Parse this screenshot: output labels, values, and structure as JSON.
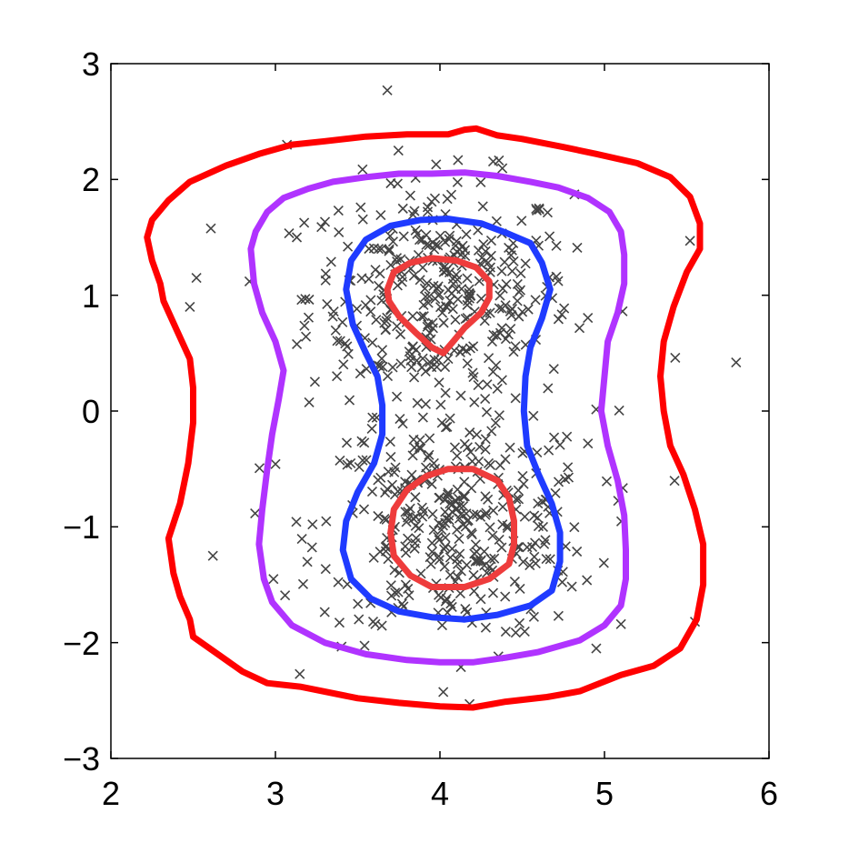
{
  "chart_data": {
    "type": "scatter",
    "title": "",
    "xlabel": "",
    "ylabel": "",
    "xlim": [
      2,
      6
    ],
    "ylim": [
      -3,
      3
    ],
    "x_ticks": [
      2,
      3,
      4,
      5,
      6
    ],
    "y_ticks": [
      -3,
      -2,
      -1,
      0,
      1,
      2,
      3
    ],
    "x_tick_labels": [
      "2",
      "3",
      "4",
      "5",
      "6"
    ],
    "y_tick_labels": [
      "−3",
      "−2",
      "−1",
      "0",
      "1",
      "2",
      "3"
    ],
    "grid": false,
    "marker": "x",
    "marker_color": "#444444",
    "scatter_clusters": [
      {
        "center": [
          4.0,
          1.0
        ],
        "std": [
          0.4,
          0.5
        ],
        "count": 360
      },
      {
        "center": [
          4.1,
          -1.0
        ],
        "std": [
          0.42,
          0.5
        ],
        "count": 360
      }
    ],
    "scatter_outliers": [
      [
        3.68,
        2.77
      ],
      [
        4.18,
        -2.53
      ],
      [
        5.8,
        0.42
      ],
      [
        5.52,
        1.47
      ],
      [
        2.48,
        0.9
      ],
      [
        2.52,
        1.15
      ],
      [
        2.62,
        -1.25
      ],
      [
        5.55,
        -1.82
      ],
      [
        5.43,
        0.46
      ],
      [
        4.95,
        -2.05
      ],
      [
        3.07,
        2.3
      ],
      [
        3.13,
        1.5
      ]
    ],
    "contours": [
      {
        "level": "outer",
        "color": "#ff0000",
        "points": [
          [
            2.22,
            1.5
          ],
          [
            2.25,
            1.65
          ],
          [
            2.35,
            1.82
          ],
          [
            2.48,
            1.98
          ],
          [
            2.7,
            2.12
          ],
          [
            2.9,
            2.22
          ],
          [
            3.1,
            2.3
          ],
          [
            3.3,
            2.33
          ],
          [
            3.55,
            2.37
          ],
          [
            3.8,
            2.39
          ],
          [
            4.05,
            2.39
          ],
          [
            4.15,
            2.43
          ],
          [
            4.22,
            2.44
          ],
          [
            4.35,
            2.38
          ],
          [
            4.5,
            2.35
          ],
          [
            4.75,
            2.28
          ],
          [
            4.95,
            2.22
          ],
          [
            5.2,
            2.14
          ],
          [
            5.4,
            2.02
          ],
          [
            5.52,
            1.85
          ],
          [
            5.58,
            1.62
          ],
          [
            5.58,
            1.4
          ],
          [
            5.5,
            1.2
          ],
          [
            5.42,
            0.9
          ],
          [
            5.36,
            0.6
          ],
          [
            5.34,
            0.3
          ],
          [
            5.36,
            0.0
          ],
          [
            5.4,
            -0.3
          ],
          [
            5.48,
            -0.55
          ],
          [
            5.55,
            -0.85
          ],
          [
            5.6,
            -1.15
          ],
          [
            5.6,
            -1.5
          ],
          [
            5.56,
            -1.8
          ],
          [
            5.46,
            -2.05
          ],
          [
            5.3,
            -2.2
          ],
          [
            5.1,
            -2.28
          ],
          [
            4.85,
            -2.42
          ],
          [
            4.65,
            -2.47
          ],
          [
            4.4,
            -2.51
          ],
          [
            4.2,
            -2.56
          ],
          [
            4.0,
            -2.55
          ],
          [
            3.75,
            -2.52
          ],
          [
            3.5,
            -2.48
          ],
          [
            3.15,
            -2.38
          ],
          [
            2.95,
            -2.35
          ],
          [
            2.8,
            -2.25
          ],
          [
            2.6,
            -2.05
          ],
          [
            2.5,
            -1.95
          ],
          [
            2.48,
            -1.8
          ],
          [
            2.42,
            -1.6
          ],
          [
            2.38,
            -1.4
          ],
          [
            2.35,
            -1.1
          ],
          [
            2.42,
            -0.8
          ],
          [
            2.47,
            -0.45
          ],
          [
            2.5,
            -0.1
          ],
          [
            2.5,
            0.2
          ],
          [
            2.48,
            0.45
          ],
          [
            2.4,
            0.7
          ],
          [
            2.32,
            0.95
          ],
          [
            2.3,
            1.1
          ],
          [
            2.25,
            1.3
          ],
          [
            2.22,
            1.5
          ]
        ]
      },
      {
        "level": "second",
        "color": "#b033ff",
        "points": [
          [
            2.85,
            1.4
          ],
          [
            2.88,
            1.55
          ],
          [
            2.95,
            1.72
          ],
          [
            3.05,
            1.84
          ],
          [
            3.2,
            1.92
          ],
          [
            3.35,
            1.98
          ],
          [
            3.55,
            2.02
          ],
          [
            3.75,
            2.05
          ],
          [
            3.95,
            2.05
          ],
          [
            4.15,
            2.06
          ],
          [
            4.35,
            2.03
          ],
          [
            4.55,
            1.98
          ],
          [
            4.72,
            1.93
          ],
          [
            4.9,
            1.84
          ],
          [
            5.03,
            1.72
          ],
          [
            5.1,
            1.55
          ],
          [
            5.12,
            1.35
          ],
          [
            5.12,
            1.1
          ],
          [
            5.08,
            0.85
          ],
          [
            5.02,
            0.6
          ],
          [
            5.0,
            0.3
          ],
          [
            4.98,
            0.0
          ],
          [
            5.02,
            -0.3
          ],
          [
            5.08,
            -0.6
          ],
          [
            5.12,
            -0.9
          ],
          [
            5.13,
            -1.2
          ],
          [
            5.13,
            -1.45
          ],
          [
            5.1,
            -1.68
          ],
          [
            5.0,
            -1.85
          ],
          [
            4.85,
            -1.98
          ],
          [
            4.6,
            -2.08
          ],
          [
            4.4,
            -2.13
          ],
          [
            4.2,
            -2.17
          ],
          [
            4.0,
            -2.17
          ],
          [
            3.8,
            -2.15
          ],
          [
            3.55,
            -2.1
          ],
          [
            3.3,
            -2.0
          ],
          [
            3.1,
            -1.85
          ],
          [
            2.98,
            -1.65
          ],
          [
            2.93,
            -1.45
          ],
          [
            2.9,
            -1.15
          ],
          [
            2.92,
            -0.85
          ],
          [
            2.95,
            -0.5
          ],
          [
            2.98,
            -0.2
          ],
          [
            3.02,
            0.1
          ],
          [
            3.05,
            0.35
          ],
          [
            3.0,
            0.6
          ],
          [
            2.92,
            0.85
          ],
          [
            2.87,
            1.1
          ],
          [
            2.85,
            1.4
          ]
        ]
      },
      {
        "level": "third",
        "color": "#1f3bff",
        "points": [
          [
            3.43,
            1.05
          ],
          [
            3.46,
            1.3
          ],
          [
            3.55,
            1.48
          ],
          [
            3.7,
            1.6
          ],
          [
            3.88,
            1.65
          ],
          [
            4.05,
            1.66
          ],
          [
            4.25,
            1.62
          ],
          [
            4.4,
            1.54
          ],
          [
            4.55,
            1.45
          ],
          [
            4.62,
            1.28
          ],
          [
            4.67,
            1.05
          ],
          [
            4.62,
            0.8
          ],
          [
            4.55,
            0.55
          ],
          [
            4.52,
            0.3
          ],
          [
            4.51,
            0.0
          ],
          [
            4.53,
            -0.3
          ],
          [
            4.6,
            -0.55
          ],
          [
            4.68,
            -0.8
          ],
          [
            4.73,
            -1.05
          ],
          [
            4.73,
            -1.3
          ],
          [
            4.68,
            -1.55
          ],
          [
            4.55,
            -1.68
          ],
          [
            4.35,
            -1.76
          ],
          [
            4.15,
            -1.8
          ],
          [
            3.95,
            -1.78
          ],
          [
            3.75,
            -1.73
          ],
          [
            3.58,
            -1.62
          ],
          [
            3.46,
            -1.45
          ],
          [
            3.41,
            -1.2
          ],
          [
            3.43,
            -0.95
          ],
          [
            3.5,
            -0.7
          ],
          [
            3.6,
            -0.45
          ],
          [
            3.65,
            -0.2
          ],
          [
            3.65,
            0.05
          ],
          [
            3.62,
            0.3
          ],
          [
            3.55,
            0.5
          ],
          [
            3.47,
            0.75
          ],
          [
            3.43,
            1.05
          ]
        ]
      },
      {
        "level": "inner-top",
        "color": "#ee3c3c",
        "points": [
          [
            3.68,
            1.05
          ],
          [
            3.72,
            1.2
          ],
          [
            3.82,
            1.28
          ],
          [
            3.95,
            1.32
          ],
          [
            4.1,
            1.3
          ],
          [
            4.22,
            1.24
          ],
          [
            4.3,
            1.12
          ],
          [
            4.3,
            0.98
          ],
          [
            4.25,
            0.85
          ],
          [
            4.15,
            0.72
          ],
          [
            4.08,
            0.6
          ],
          [
            4.02,
            0.5
          ],
          [
            3.95,
            0.55
          ],
          [
            3.85,
            0.68
          ],
          [
            3.75,
            0.82
          ],
          [
            3.69,
            0.95
          ],
          [
            3.68,
            1.05
          ]
        ]
      },
      {
        "level": "inner-bottom",
        "color": "#ee3c3c",
        "points": [
          [
            3.7,
            -1.05
          ],
          [
            3.72,
            -0.85
          ],
          [
            3.8,
            -0.68
          ],
          [
            3.92,
            -0.56
          ],
          [
            4.05,
            -0.5
          ],
          [
            4.2,
            -0.5
          ],
          [
            4.35,
            -0.6
          ],
          [
            4.42,
            -0.75
          ],
          [
            4.45,
            -0.95
          ],
          [
            4.45,
            -1.15
          ],
          [
            4.42,
            -1.32
          ],
          [
            4.3,
            -1.45
          ],
          [
            4.15,
            -1.52
          ],
          [
            3.95,
            -1.52
          ],
          [
            3.82,
            -1.42
          ],
          [
            3.72,
            -1.25
          ],
          [
            3.7,
            -1.05
          ]
        ]
      }
    ]
  }
}
